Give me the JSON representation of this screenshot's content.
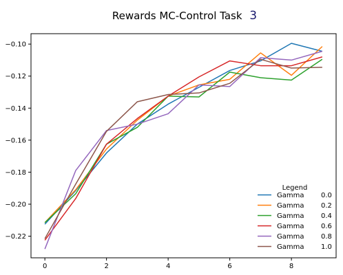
{
  "chart_data": {
    "type": "line",
    "title": "Rewards MC-Control Task",
    "title_task_number": "3",
    "xlabel": "",
    "ylabel": "",
    "xlim": [
      -0.45,
      9.45
    ],
    "ylim": [
      -0.2335,
      -0.0935
    ],
    "x_ticks": [
      0,
      2,
      4,
      6,
      8
    ],
    "y_ticks": [
      -0.22,
      -0.2,
      -0.18,
      -0.16,
      -0.14,
      -0.12,
      -0.1
    ],
    "grid": false,
    "legend": {
      "title": "Legend",
      "placement": "lower-right"
    },
    "x": [
      0,
      1,
      2,
      3,
      4,
      5,
      6,
      7,
      8,
      9
    ],
    "series": [
      {
        "name": "Gamma        0.0",
        "color": "#1f77b4",
        "values": [
          -0.2125,
          -0.1915,
          -0.168,
          -0.15,
          -0.1375,
          -0.127,
          -0.1165,
          -0.1105,
          -0.0995,
          -0.1045
        ]
      },
      {
        "name": "Gamma        0.2",
        "color": "#ff7f0e",
        "values": [
          -0.2115,
          -0.191,
          -0.1655,
          -0.1475,
          -0.1325,
          -0.1255,
          -0.122,
          -0.1055,
          -0.1195,
          -0.1015
        ]
      },
      {
        "name": "Gamma        0.4",
        "color": "#2ca02c",
        "values": [
          -0.2115,
          -0.1935,
          -0.1625,
          -0.152,
          -0.1325,
          -0.133,
          -0.1175,
          -0.121,
          -0.1225,
          -0.1095
        ]
      },
      {
        "name": "Gamma        0.6",
        "color": "#d62728",
        "values": [
          -0.2225,
          -0.1965,
          -0.1625,
          -0.1465,
          -0.1325,
          -0.1205,
          -0.1105,
          -0.1135,
          -0.1135,
          -0.108
        ]
      },
      {
        "name": "Gamma        0.8",
        "color": "#9467bd",
        "values": [
          -0.228,
          -0.179,
          -0.154,
          -0.15,
          -0.1435,
          -0.1255,
          -0.1265,
          -0.1085,
          -0.11,
          -0.1045
        ]
      },
      {
        "name": "Gamma        1.0",
        "color": "#8c564b",
        "values": [
          -0.2215,
          -0.1875,
          -0.1545,
          -0.136,
          -0.1315,
          -0.1305,
          -0.1245,
          -0.1095,
          -0.115,
          -0.1145
        ]
      }
    ]
  }
}
